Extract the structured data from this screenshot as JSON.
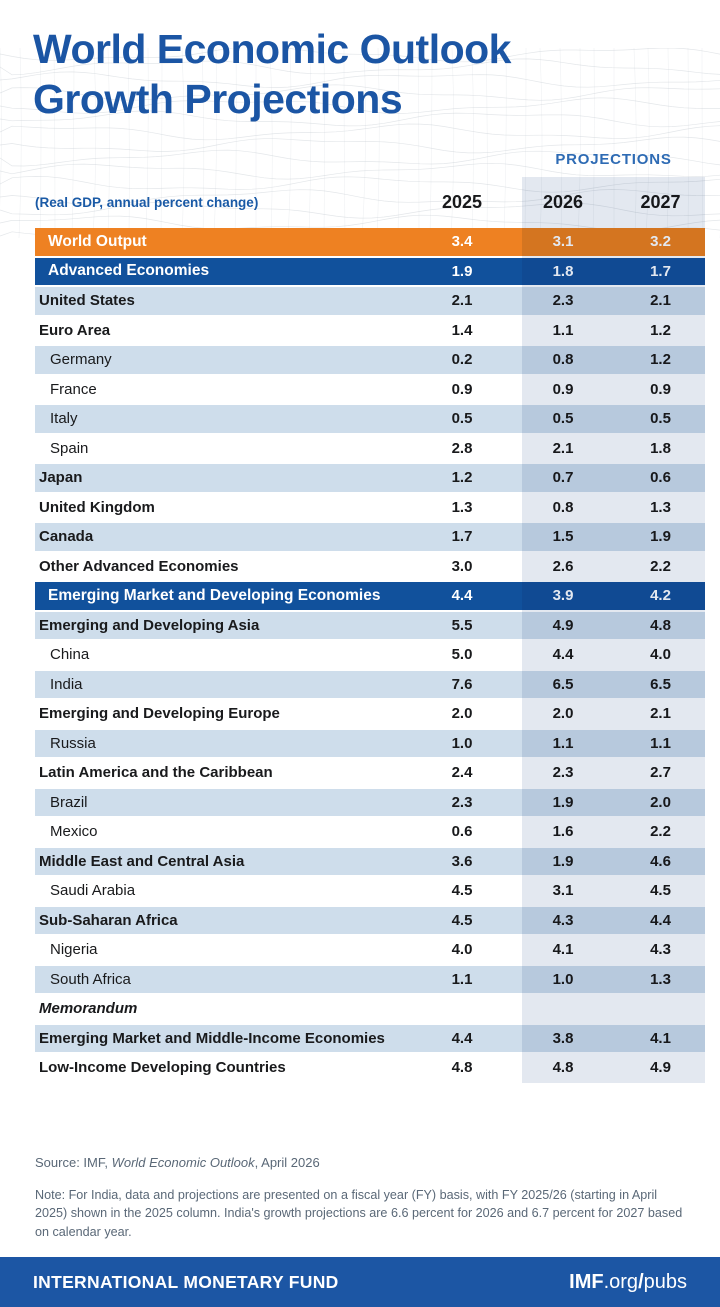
{
  "title": {
    "line1": "World Economic Outlook",
    "line2": "Growth Projections"
  },
  "header": {
    "projections_label": "PROJECTIONS",
    "unit_label": "(Real GDP, annual percent change)",
    "years": [
      "2025",
      "2026",
      "2027"
    ]
  },
  "chart_data": {
    "type": "table",
    "title": "World Economic Outlook Growth Projections",
    "unit": "Real GDP, annual percent change",
    "columns": [
      "2025",
      "2026",
      "2027"
    ],
    "rows": [
      {
        "label": "World Output",
        "level": "world",
        "values": [
          "3.4",
          "3.1",
          "3.2"
        ]
      },
      {
        "label": "Advanced Economies",
        "level": "group",
        "values": [
          "1.9",
          "1.8",
          "1.7"
        ]
      },
      {
        "label": "United States",
        "level": "l1",
        "values": [
          "2.1",
          "2.3",
          "2.1"
        ]
      },
      {
        "label": "Euro Area",
        "level": "l1",
        "values": [
          "1.4",
          "1.1",
          "1.2"
        ]
      },
      {
        "label": "Germany",
        "level": "l2",
        "values": [
          "0.2",
          "0.8",
          "1.2"
        ]
      },
      {
        "label": "France",
        "level": "l2",
        "values": [
          "0.9",
          "0.9",
          "0.9"
        ]
      },
      {
        "label": "Italy",
        "level": "l2",
        "values": [
          "0.5",
          "0.5",
          "0.5"
        ]
      },
      {
        "label": "Spain",
        "level": "l2",
        "values": [
          "2.8",
          "2.1",
          "1.8"
        ]
      },
      {
        "label": "Japan",
        "level": "l1",
        "values": [
          "1.2",
          "0.7",
          "0.6"
        ]
      },
      {
        "label": "United Kingdom",
        "level": "l1",
        "values": [
          "1.3",
          "0.8",
          "1.3"
        ]
      },
      {
        "label": "Canada",
        "level": "l1",
        "values": [
          "1.7",
          "1.5",
          "1.9"
        ]
      },
      {
        "label": "Other Advanced Economies",
        "level": "l1",
        "values": [
          "3.0",
          "2.6",
          "2.2"
        ]
      },
      {
        "label": "Emerging Market and Developing Economies",
        "level": "group",
        "values": [
          "4.4",
          "3.9",
          "4.2"
        ]
      },
      {
        "label": "Emerging and Developing Asia",
        "level": "l1",
        "values": [
          "5.5",
          "4.9",
          "4.8"
        ]
      },
      {
        "label": "China",
        "level": "l2",
        "values": [
          "5.0",
          "4.4",
          "4.0"
        ]
      },
      {
        "label": "India",
        "level": "l2",
        "values": [
          "7.6",
          "6.5",
          "6.5"
        ]
      },
      {
        "label": "Emerging and Developing Europe",
        "level": "l1",
        "values": [
          "2.0",
          "2.0",
          "2.1"
        ]
      },
      {
        "label": "Russia",
        "level": "l2",
        "values": [
          "1.0",
          "1.1",
          "1.1"
        ]
      },
      {
        "label": "Latin America and the Caribbean",
        "level": "l1",
        "values": [
          "2.4",
          "2.3",
          "2.7"
        ]
      },
      {
        "label": "Brazil",
        "level": "l2",
        "values": [
          "2.3",
          "1.9",
          "2.0"
        ]
      },
      {
        "label": "Mexico",
        "level": "l2",
        "values": [
          "0.6",
          "1.6",
          "2.2"
        ]
      },
      {
        "label": "Middle East and Central Asia",
        "level": "l1",
        "values": [
          "3.6",
          "1.9",
          "4.6"
        ]
      },
      {
        "label": "Saudi Arabia",
        "level": "l2",
        "values": [
          "4.5",
          "3.1",
          "4.5"
        ]
      },
      {
        "label": "Sub-Saharan Africa",
        "level": "l1",
        "values": [
          "4.5",
          "4.3",
          "4.4"
        ]
      },
      {
        "label": "Nigeria",
        "level": "l2",
        "values": [
          "4.0",
          "4.1",
          "4.3"
        ]
      },
      {
        "label": "South Africa",
        "level": "l2",
        "values": [
          "1.1",
          "1.0",
          "1.3"
        ]
      },
      {
        "label": "Memorandum",
        "level": "memo",
        "values": []
      },
      {
        "label": "Emerging Market and Middle-Income Economies",
        "level": "l1",
        "values": [
          "4.4",
          "3.8",
          "4.1"
        ]
      },
      {
        "label": "Low-Income Developing Countries",
        "level": "l1",
        "values": [
          "4.8",
          "4.8",
          "4.9"
        ]
      }
    ]
  },
  "footer": {
    "source_prefix": "Source: IMF, ",
    "source_title": "World Economic Outlook",
    "source_suffix": ", April 2026",
    "note": "Note: For India, data and projections are presented on a fiscal year (FY) basis, with FY 2025/26 (starting in April 2025) shown in the 2025 column. India's growth projections are 6.6 percent for 2026 and 6.7 percent for 2027 based on calendar year."
  },
  "bottom_bar": {
    "org_name": "INTERNATIONAL MONETARY FUND",
    "site": {
      "imf": "IMF",
      "org": ".org",
      "slash": "/",
      "pubs": "pubs"
    }
  },
  "colors": {
    "title_blue": "#1B55A4",
    "projections_label_blue": "#2E6BB4",
    "world_output_orange": "#EE8122",
    "group_header_blue": "#11519C",
    "row_shade_blue": "#CEDDEB",
    "projections_band_tint": "#E3E8F0",
    "footer_text_gray": "#5A6877",
    "bottom_bar_blue": "#1C56A4"
  }
}
